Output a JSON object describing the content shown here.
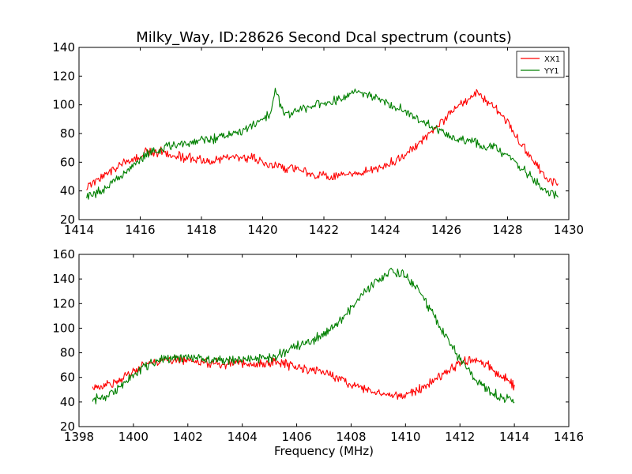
{
  "chart_data": [
    {
      "type": "line",
      "title": "Milky_Way, ID:28626 Second Dcal spectrum (counts)",
      "xlabel": "",
      "ylabel": "",
      "xlim": [
        1414,
        1430
      ],
      "ylim": [
        20,
        140
      ],
      "xticks": [
        1414,
        1416,
        1418,
        1420,
        1422,
        1424,
        1426,
        1428,
        1430
      ],
      "yticks": [
        20,
        40,
        60,
        80,
        100,
        120,
        140
      ],
      "grid": false,
      "legend": "top-right",
      "series": [
        {
          "name": "XX1",
          "color": "#ff0000",
          "x": [
            1414.25,
            1414.75,
            1415.25,
            1415.75,
            1416.25,
            1416.75,
            1417.25,
            1417.75,
            1418.25,
            1418.75,
            1419.25,
            1419.75,
            1420.25,
            1420.75,
            1421.25,
            1421.75,
            1422.25,
            1422.75,
            1423.25,
            1423.75,
            1424.25,
            1424.75,
            1425.25,
            1425.75,
            1426.25,
            1426.75,
            1427.0,
            1427.25,
            1427.75,
            1428.25,
            1428.75,
            1429.25,
            1429.65
          ],
          "y": [
            43,
            50,
            57,
            63,
            67,
            67,
            64,
            62,
            61,
            63,
            64,
            63,
            58,
            56,
            54,
            51,
            50,
            51,
            53,
            56,
            60,
            67,
            76,
            86,
            97,
            104,
            108,
            104,
            95,
            80,
            63,
            49,
            44
          ]
        },
        {
          "name": "YY1",
          "color": "#008000",
          "x": [
            1414.25,
            1414.75,
            1415.25,
            1415.75,
            1416.25,
            1416.75,
            1417.25,
            1417.75,
            1418.25,
            1418.75,
            1419.25,
            1419.75,
            1420.25,
            1420.4,
            1420.75,
            1421.25,
            1421.75,
            1422.25,
            1422.75,
            1423.0,
            1423.25,
            1423.75,
            1424.25,
            1424.75,
            1425.25,
            1425.75,
            1426.25,
            1426.75,
            1427.25,
            1427.75,
            1428.25,
            1428.75,
            1429.25,
            1429.65
          ],
          "y": [
            37,
            40,
            48,
            58,
            66,
            70,
            72,
            74,
            75,
            78,
            81,
            87,
            93,
            110,
            93,
            97,
            100,
            102,
            107,
            109,
            108,
            104,
            100,
            94,
            88,
            83,
            77,
            74,
            72,
            68,
            60,
            50,
            40,
            36
          ]
        }
      ]
    },
    {
      "type": "line",
      "title": "",
      "xlabel": "Frequency (MHz)",
      "ylabel": "",
      "xlim": [
        1398,
        1416
      ],
      "ylim": [
        20,
        160
      ],
      "xticks": [
        1398,
        1400,
        1402,
        1404,
        1406,
        1408,
        1410,
        1412,
        1414,
        1416
      ],
      "yticks": [
        20,
        40,
        60,
        80,
        100,
        120,
        140,
        160
      ],
      "grid": false,
      "series": [
        {
          "color": "#ff0000",
          "x": [
            1398.5,
            1399,
            1399.5,
            1400,
            1400.5,
            1401,
            1401.5,
            1402,
            1402.5,
            1403,
            1403.5,
            1404,
            1404.5,
            1405,
            1405.5,
            1406,
            1406.5,
            1407,
            1407.5,
            1408,
            1408.5,
            1409,
            1409.5,
            1410,
            1410.5,
            1411,
            1411.5,
            1412,
            1412.5,
            1413,
            1413.5,
            1414
          ],
          "y": [
            51,
            53,
            58,
            65,
            71,
            73,
            74,
            73,
            72,
            71,
            71,
            71,
            72,
            72,
            71,
            69,
            66,
            63,
            59,
            55,
            51,
            47,
            45,
            46,
            50,
            57,
            64,
            72,
            75,
            70,
            62,
            53
          ]
        },
        {
          "color": "#008000",
          "x": [
            1398.5,
            1399,
            1399.5,
            1400,
            1400.5,
            1401,
            1401.5,
            1402,
            1402.5,
            1403,
            1403.5,
            1404,
            1404.5,
            1405,
            1405.5,
            1406,
            1406.5,
            1407,
            1407.5,
            1408,
            1408.5,
            1409,
            1409.5,
            1410,
            1410.5,
            1411,
            1411.5,
            1412,
            1412.5,
            1413,
            1413.5,
            1414
          ],
          "y": [
            42,
            45,
            52,
            62,
            70,
            74,
            76,
            76,
            75,
            75,
            74,
            74,
            75,
            76,
            80,
            86,
            90,
            95,
            104,
            116,
            130,
            140,
            146,
            143,
            130,
            112,
            93,
            75,
            60,
            50,
            44,
            42
          ]
        }
      ]
    }
  ]
}
